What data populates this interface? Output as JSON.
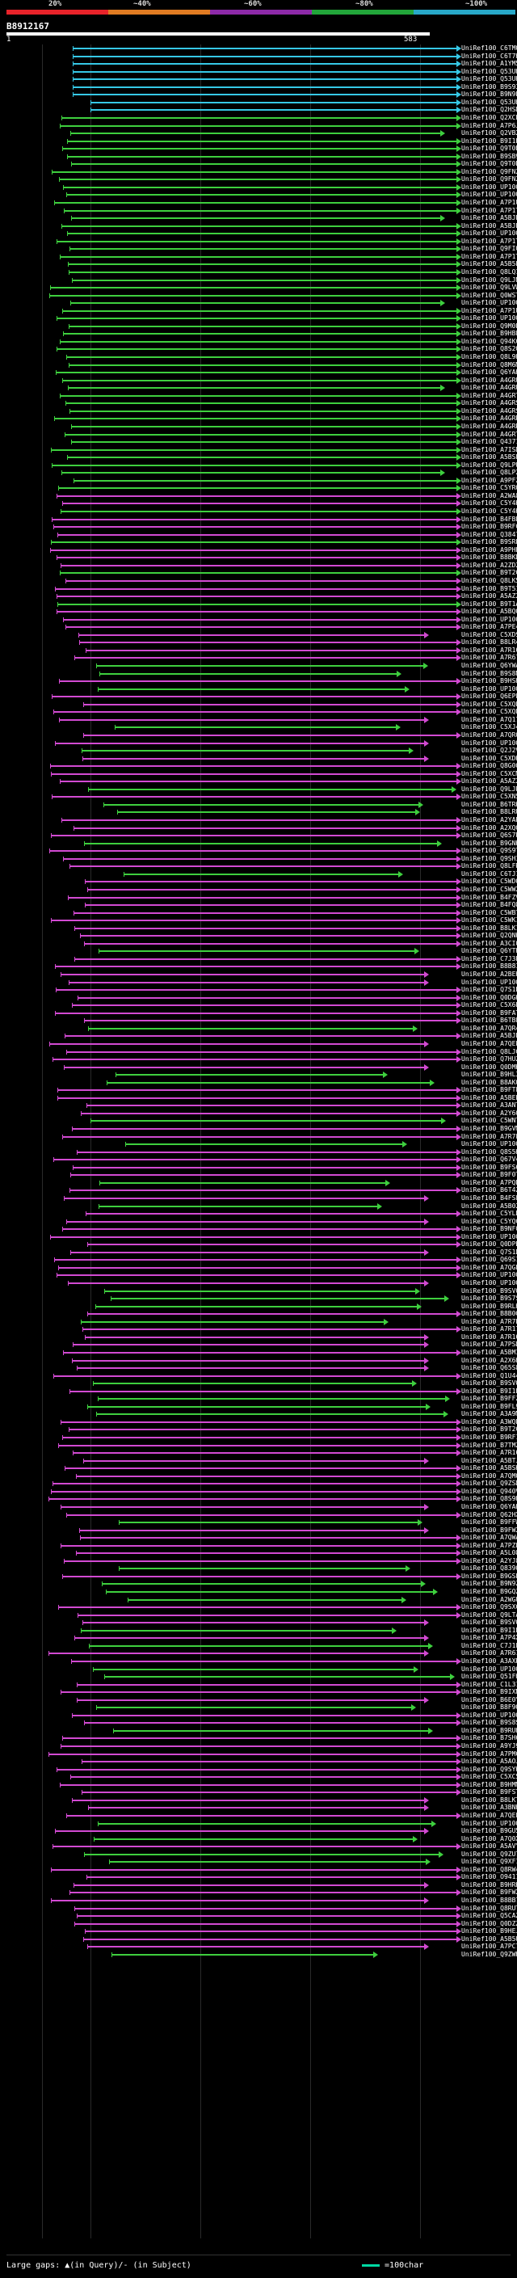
{
  "scale": {
    "labels": [
      "20%",
      "~40%",
      "~60%",
      "~80%",
      "~100%"
    ],
    "colors": [
      "#e8232a",
      "#e07b22",
      "#8d2aa8",
      "#22a53a",
      "#28a8c8"
    ]
  },
  "query": {
    "id": "B8912167",
    "start_label": "1",
    "end_label": "583"
  },
  "palette": {
    "cyan": "#36c8e6",
    "green": "#3ecf3e",
    "magenta": "#d24ad2",
    "label": "#ffffff"
  },
  "hits": [
    "UniRef100_C6TMQ0",
    "UniRef100_C6T7H4",
    "UniRef100_A1YM58",
    "UniRef100_Q53UH5",
    "UniRef100_Q53UH4",
    "UniRef100_B9S939",
    "UniRef100_B9N9L4",
    "UniRef100_Q53UH3",
    "UniRef100_Q2HSD2",
    "UniRef100_Q2XCE9",
    "UniRef100_A7P6J3",
    "UniRef100_Q2VB25",
    "UniRef100_B9I1E5",
    "UniRef100_Q9T0B1",
    "UniRef100_B9SB92",
    "UniRef100_Q9T0B0",
    "UniRef100_Q9FN26",
    "UniRef100_Q9FN28",
    "UniRef100_UP1000...",
    "UniRef100_UP1000...",
    "UniRef100_A7P1U1",
    "UniRef100_A7P1T9",
    "UniRef100_A5BJE6",
    "UniRef100_A5BJE4",
    "UniRef100_UP1000...",
    "UniRef100_A7P1T6",
    "UniRef100_Q9FIQ5",
    "UniRef100_A7P1T7",
    "UniRef100_A5B5L6",
    "UniRef100_Q8LQ10",
    "UniRef100_Q9LJN6",
    "UniRef100_Q9LVW3",
    "UniRef100_Q0WST8",
    "UniRef100_UP1000...",
    "UniRef100_A7P1U0",
    "UniRef100_UP1000...",
    "UniRef100_Q9M0P3",
    "UniRef100_B9HBF7",
    "UniRef100_Q94KC5",
    "UniRef100_Q8S2Q5",
    "UniRef100_Q8L9H5",
    "UniRef100_Q8M6M4",
    "UniRef100_Q6YAH3",
    "UniRef100_A4GRU4",
    "UniRef100_A4GRU2",
    "UniRef100_A4GRT4",
    "UniRef100_A4GRS4",
    "UniRef100_A4GRS3",
    "UniRef100_A4GRR3",
    "UniRef100_A4GRR2",
    "UniRef100_A4GRT2",
    "UniRef100_Q43716",
    "UniRef100_A7ISD3",
    "UniRef100_A5BSL5",
    "UniRef100_Q9LPU0",
    "UniRef100_Q8LP23",
    "UniRef100_A9PFZ7",
    "UniRef100_C5YRQ7",
    "UniRef100_A2WA84",
    "UniRef100_C5Y4K5",
    "UniRef100_C5Y4K6",
    "UniRef100_B4FBE0",
    "UniRef100_B9RFC0",
    "UniRef100_Q38475",
    "UniRef100_B9SRL4",
    "UniRef100_A9PHE3",
    "UniRef100_B8BKD4",
    "UniRef100_A2ZD23",
    "UniRef100_B9T2C2",
    "UniRef100_Q8LK53",
    "UniRef100_B9T519",
    "UniRef100_A5AZ24",
    "UniRef100_B9T1A6",
    "UniRef100_A5BQ02",
    "UniRef100_UP1000...",
    "UniRef100_A7PE42",
    "UniRef100_C5XDS8",
    "UniRef100_B8LR43",
    "UniRef100_A7R168",
    "UniRef100_A7R67",
    "UniRef100_Q6YWA9",
    "UniRef100_B9S8N2",
    "UniRef100_B9HSH7",
    "UniRef100_UP1000...",
    "UniRef100_Q6EPF2",
    "UniRef100_C5XQL5",
    "UniRef100_C5XQL4",
    "UniRef100_A7Q171",
    "UniRef100_C5XJ49",
    "UniRef100_A7QR00",
    "UniRef100_UP1000...",
    "UniRef100_Q2J2V5",
    "UniRef100_C5XDK0",
    "UniRef100_Q8G009",
    "UniRef100_C5XCM4",
    "UniRef100_A5AZ22",
    "UniRef100_Q9LJR0",
    "UniRef100_C5XN52",
    "UniRef100_B6TRK5",
    "UniRef100_B8LRU6",
    "UniRef100_A2YAP2",
    "UniRef100_A2XQQ2",
    "UniRef100_Q6S7R8",
    "UniRef100_B9GNK2",
    "UniRef100_Q9S9T7",
    "UniRef100_Q9SHI5",
    "UniRef100_Q8LFR6",
    "UniRef100_C6TJ12",
    "UniRef100_C5WD00",
    "UniRef100_C5WW29",
    "UniRef100_B4FZV2",
    "UniRef100_B4FQ81",
    "UniRef100_C5WB76",
    "UniRef100_C5WK17",
    "UniRef100_B8LK10",
    "UniRef100_Q2QNK9",
    "UniRef100_A3CI01",
    "UniRef100_Q6YTH5",
    "UniRef100_C7J3P5",
    "UniRef100_B8B8I2",
    "UniRef100_A2BEH4",
    "UniRef100_UP1000...",
    "UniRef100_Q7S1B6",
    "UniRef100_Q0DGK1",
    "UniRef100_C5X6P4",
    "UniRef100_B9FAT3",
    "UniRef100_B6TBF2",
    "UniRef100_A7QR45",
    "UniRef100_A5BJE5",
    "UniRef100_A7QEL3",
    "UniRef100_Q8LJC6",
    "UniRef100_Q7HUZ2",
    "UniRef100_Q0DMK0",
    "UniRef100_B9HL35",
    "UniRef100_B8AKQ2",
    "UniRef100_B9FTF5",
    "UniRef100_A5BEE3",
    "UniRef100_A3ANT2",
    "UniRef100_A2Y604",
    "UniRef100_C5WNT5",
    "UniRef100_B9GVM8",
    "UniRef100_A7R7F0",
    "UniRef100_UP1000...",
    "UniRef100_Q8S5K2",
    "UniRef100_Q67V41",
    "UniRef100_B9FS69",
    "UniRef100_B9F0T2",
    "UniRef100_A7PQE1",
    "UniRef100_B6T4Z7",
    "UniRef100_B4FSF9",
    "UniRef100_A5B022",
    "UniRef100_C5YLB7",
    "UniRef100_C5YQC3",
    "UniRef100_B9NF05",
    "UniRef100_UP1000...",
    "UniRef100_Q0DPB7",
    "UniRef100_Q7S1D3",
    "UniRef100_Q69S16",
    "UniRef100_A7QGE2",
    "UniRef100_UP1000...",
    "UniRef100_UP1000...",
    "UniRef100_B9SV04",
    "UniRef100_B9S7S5",
    "UniRef100_B9RLH6",
    "UniRef100_B8B0G4",
    "UniRef100_A7R7E9",
    "UniRef100_A7R173",
    "UniRef100_A7R166",
    "UniRef100_A7PSD6",
    "UniRef100_A5BMI3",
    "UniRef100_A2X6H5",
    "UniRef100_Q65S84",
    "UniRef100_Q1U443",
    "UniRef100_B9SV06",
    "UniRef100_B9I1E3",
    "UniRef100_B9FFZ6",
    "UniRef100_B9FL90",
    "UniRef100_A3A9M6",
    "UniRef100_A3WQP0",
    "UniRef100_B9T2C0",
    "UniRef100_B9RF10",
    "UniRef100_B7TMZ3",
    "UniRef100_A7R167",
    "UniRef100_A5BTJ5",
    "UniRef100_A5BSK4",
    "UniRef100_A7QMQ6",
    "UniRef100_Q9ZSD4",
    "UniRef100_Q940V3",
    "UniRef100_Q8S9H6",
    "UniRef100_Q6YAH6",
    "UniRef100_Q62HX7",
    "UniRef100_B9FFW6",
    "UniRef100_B9FW24",
    "UniRef100_A7QWA8",
    "UniRef100_A7PZL7",
    "UniRef100_A5L085",
    "UniRef100_A2YJ83",
    "UniRef100_Q83900",
    "UniRef100_B9GSP0",
    "UniRef100_B9N9Z4",
    "UniRef100_B9GQZ5",
    "UniRef100_A2WGU2",
    "UniRef100_Q9SXC1",
    "UniRef100_Q9LTA3",
    "UniRef100_B9SV05",
    "UniRef100_B9I1E9",
    "UniRef100_A7P4X6",
    "UniRef100_C7J1F5",
    "UniRef100_A7R611",
    "UniRef100_A3AXR3",
    "UniRef100_UP1000...",
    "UniRef100_Q51FH8",
    "UniRef100_C1L319",
    "UniRef100_B9IXN0",
    "UniRef100_B6E0Y1",
    "UniRef100_B8F9Q3",
    "UniRef100_UP1000...",
    "UniRef100_B9S8S4",
    "UniRef100_B9RUH8",
    "UniRef100_B7SH67",
    "UniRef100_A9YJ97",
    "UniRef100_A7PMC2",
    "UniRef100_A5AOJ7",
    "UniRef100_Q9SYK9",
    "UniRef100_C5XC57",
    "UniRef100_B9HMM3",
    "UniRef100_B9FST7",
    "UniRef100_B8LKT4",
    "UniRef100_A3BNH1",
    "UniRef100_A7QEL2",
    "UniRef100_UP1000...",
    "UniRef100_B9GU55",
    "UniRef100_A7Q0X1",
    "UniRef100_A5AVY9",
    "UniRef100_Q9ZU72",
    "UniRef100_Q9XF16",
    "UniRef100_Q8RW46",
    "UniRef100_O94114",
    "UniRef100_B9HRH9",
    "UniRef100_B9FW23",
    "UniRef100_B8BB77",
    "UniRef100_Q8RUT1",
    "UniRef100_Q5CAZ5",
    "UniRef100_Q0DZZ5",
    "UniRef100_B9HEJ5",
    "UniRef100_A5B5U7",
    "UniRef100_A7PC7D",
    "UniRef100_Q9ZWH1"
  ],
  "legend": {
    "left": "Large gaps: ▲(in Query)/- (in Subject)",
    "right": "=100char"
  }
}
